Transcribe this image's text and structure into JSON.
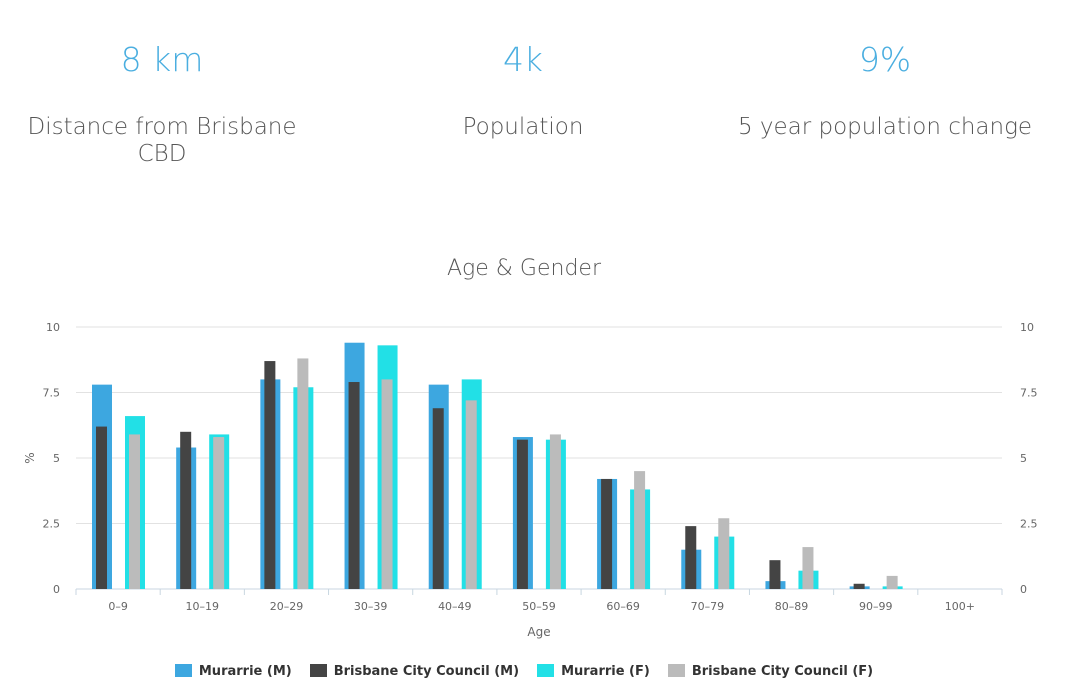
{
  "stats": [
    {
      "value": "8 km",
      "label": "Distance from Brisbane CBD"
    },
    {
      "value": "4k",
      "label": "Population"
    },
    {
      "value": "9%",
      "label": "5 year population change"
    }
  ],
  "chart_data": {
    "type": "bar",
    "title": "Age & Gender",
    "xlabel": "Age",
    "ylabel": "%",
    "ylim": [
      0,
      10
    ],
    "yticks": [
      0,
      2.5,
      5,
      7.5,
      10
    ],
    "ytick_labels": [
      "0",
      "2.5",
      "5",
      "7.5",
      "10"
    ],
    "grid": true,
    "legend_position": "bottom",
    "categories": [
      "0–9",
      "10–19",
      "20–29",
      "30–39",
      "40–49",
      "50–59",
      "60–69",
      "70–79",
      "80–89",
      "90–99",
      "100+"
    ],
    "series": [
      {
        "name": "Murarrie (M)",
        "color": "#3da7e0",
        "values": [
          7.8,
          5.4,
          8.0,
          9.4,
          7.8,
          5.8,
          4.2,
          1.5,
          0.3,
          0.1,
          0
        ]
      },
      {
        "name": "Brisbane City Council (M)",
        "color": "#444444",
        "values": [
          6.2,
          6.0,
          8.7,
          7.9,
          6.9,
          5.7,
          4.2,
          2.4,
          1.1,
          0.2,
          0
        ]
      },
      {
        "name": "Murarrie (F)",
        "color": "#22e0e6",
        "values": [
          6.6,
          5.9,
          7.7,
          9.3,
          8.0,
          5.7,
          3.8,
          2.0,
          0.7,
          0.1,
          0
        ]
      },
      {
        "name": "Brisbane City Council (F)",
        "color": "#bbbbbb",
        "values": [
          5.9,
          5.8,
          8.8,
          8.0,
          7.2,
          5.9,
          4.5,
          2.7,
          1.6,
          0.5,
          0
        ]
      }
    ]
  }
}
